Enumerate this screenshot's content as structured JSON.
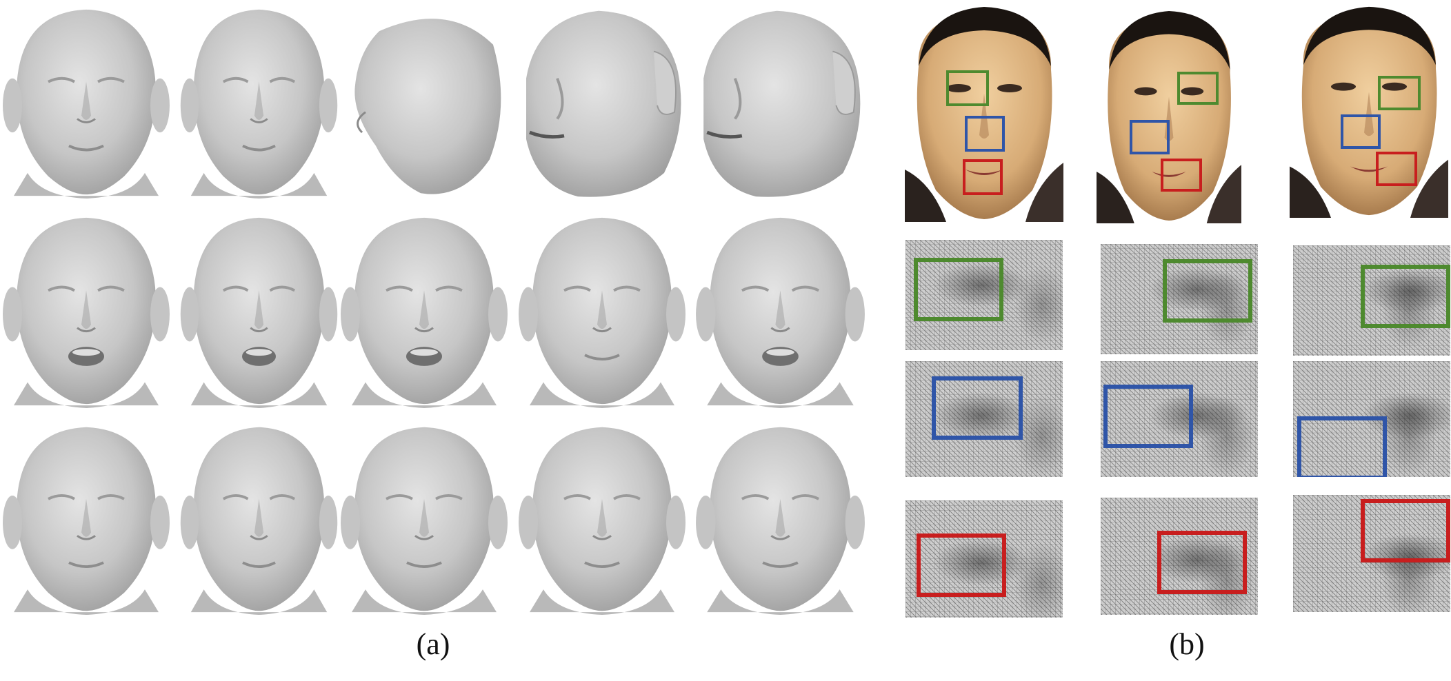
{
  "figure": {
    "panel_a": {
      "caption": "(a)"
    },
    "panel_b": {
      "caption": "(b)"
    }
  },
  "colors": {
    "mesh_base": "#bdbdbd",
    "mesh_light": "#dcdcdc",
    "mesh_dark": "#8f8f8f",
    "skin": "#d9b58a",
    "box_eye": "#4e8a2f",
    "box_nose": "#2f55a8",
    "box_mouth": "#c81e1e"
  },
  "icons": {
    "mesh": "face-mesh-render",
    "photo": "textured-face-photo",
    "crop": "wireframe-detail-crop"
  }
}
